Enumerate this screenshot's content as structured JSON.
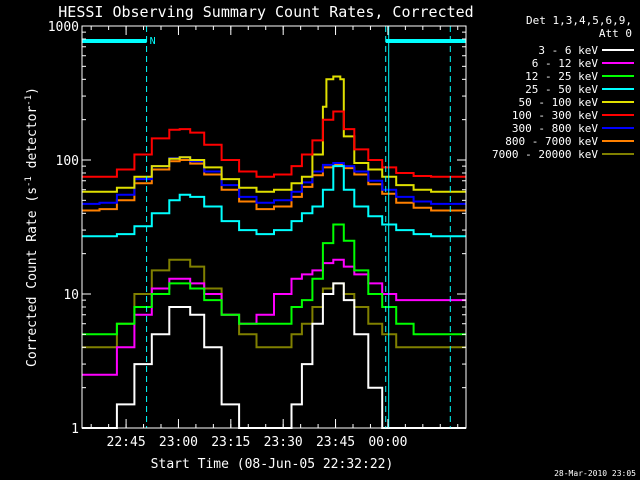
{
  "chart_data": {
    "type": "line",
    "title": "HESSI Observing Summary Count Rates, Corrected",
    "xlabel": "Start Time (08-Jun-05 22:32:22)",
    "ylabel_prefix": "Corrected Count Rate (s",
    "ylabel_sup1": "-1",
    "ylabel_mid": " detector",
    "ylabel_sup2": "-1",
    "ylabel_suffix": ")",
    "footer": "28-Mar-2010 23:05",
    "y_scale": "log",
    "ylim": [
      1,
      1000
    ],
    "xlim_minutes_after_start": [
      0,
      110
    ],
    "x_ticks": [
      {
        "label": "22:45",
        "min": 12.63
      },
      {
        "label": "23:00",
        "min": 27.63
      },
      {
        "label": "23:15",
        "min": 42.63
      },
      {
        "label": "23:30",
        "min": 57.63
      },
      {
        "label": "23:45",
        "min": 72.63
      },
      {
        "label": "00:00",
        "min": 87.63
      }
    ],
    "y_ticks": [
      {
        "label": "1",
        "value": 1
      },
      {
        "label": "10",
        "value": 10
      },
      {
        "label": "100",
        "value": 100
      },
      {
        "label": "1000",
        "value": 1000
      }
    ],
    "legend": {
      "position": "top-right",
      "header": [
        "Det 1,3,4,5,6,9,",
        "Att 0"
      ],
      "entries": [
        {
          "name": "3 - 6 keV",
          "color": "#ffffff"
        },
        {
          "name": "6 - 12 keV",
          "color": "#ff00ff"
        },
        {
          "name": "12 - 25 keV",
          "color": "#00ff00"
        },
        {
          "name": "25 - 50 keV",
          "color": "#00ffff"
        },
        {
          "name": "50 - 100 keV",
          "color": "#e0e000"
        },
        {
          "name": "100 - 300 keV",
          "color": "#ff0000"
        },
        {
          "name": "300 - 800 keV",
          "color": "#0000ff"
        },
        {
          "name": "800 - 7000 keV",
          "color": "#ff8000"
        },
        {
          "name": "7000 - 20000 keV",
          "color": "#808000"
        }
      ]
    },
    "saa_flag": {
      "label": "N",
      "color": "#00ffff",
      "intervals_min": [
        [
          0,
          18.5
        ],
        [
          87,
          110
        ]
      ]
    },
    "dashed_markers_min": [
      18.5,
      87,
      105.5
    ],
    "night_markers_min": [
      87
    ],
    "series": [
      {
        "name": "3 - 6 keV",
        "color": "#ffffff",
        "x": [
          0,
          5,
          10,
          15,
          20,
          25,
          28,
          31,
          35,
          40,
          45,
          50,
          55,
          60,
          63,
          66,
          69,
          72,
          75,
          78,
          82,
          86,
          90,
          95,
          100,
          105,
          110
        ],
        "y": [
          1,
          1,
          1.5,
          3,
          5,
          8,
          8,
          7,
          4,
          1.5,
          1,
          1,
          1,
          1.5,
          3,
          6,
          10,
          12,
          9,
          5,
          2,
          1,
          1,
          1,
          1,
          1,
          1
        ]
      },
      {
        "name": "6 - 12 keV",
        "color": "#ff00ff",
        "x": [
          0,
          5,
          10,
          15,
          20,
          25,
          28,
          31,
          35,
          40,
          45,
          50,
          55,
          60,
          63,
          66,
          69,
          72,
          75,
          78,
          82,
          86,
          90,
          95,
          100,
          105,
          110
        ],
        "y": [
          2.5,
          2.5,
          4,
          7,
          11,
          13,
          13,
          12,
          10,
          7,
          6,
          7,
          10,
          13,
          14,
          15,
          17,
          18,
          16,
          14,
          12,
          10,
          9,
          9,
          9,
          9,
          9
        ]
      },
      {
        "name": "12 - 25 keV",
        "color": "#00ff00",
        "x": [
          0,
          5,
          10,
          15,
          20,
          25,
          28,
          31,
          35,
          40,
          45,
          50,
          55,
          60,
          63,
          66,
          69,
          72,
          75,
          78,
          82,
          86,
          90,
          95,
          100,
          105,
          110
        ],
        "y": [
          5,
          5,
          6,
          8,
          10,
          12,
          12,
          11,
          9,
          7,
          6,
          6,
          6,
          8,
          9,
          13,
          24,
          33,
          25,
          15,
          10,
          8,
          6,
          5,
          5,
          5,
          5
        ]
      },
      {
        "name": "25 - 50 keV",
        "color": "#00ffff",
        "x": [
          0,
          5,
          10,
          15,
          20,
          25,
          28,
          31,
          35,
          40,
          45,
          50,
          55,
          60,
          63,
          66,
          69,
          72,
          75,
          78,
          82,
          86,
          90,
          95,
          100,
          105,
          110
        ],
        "y": [
          27,
          27,
          28,
          32,
          40,
          50,
          55,
          53,
          45,
          35,
          30,
          28,
          30,
          35,
          40,
          45,
          60,
          90,
          60,
          45,
          38,
          33,
          30,
          28,
          27,
          27,
          27
        ]
      },
      {
        "name": "50 - 100 keV",
        "color": "#e0e000",
        "x": [
          0,
          5,
          10,
          15,
          20,
          25,
          28,
          31,
          35,
          40,
          45,
          50,
          55,
          60,
          63,
          66,
          69,
          70,
          72,
          74,
          75,
          78,
          82,
          86,
          90,
          95,
          100,
          105,
          110
        ],
        "y": [
          58,
          58,
          62,
          75,
          90,
          102,
          105,
          100,
          88,
          72,
          62,
          58,
          60,
          67,
          75,
          110,
          250,
          400,
          420,
          400,
          150,
          95,
          85,
          75,
          65,
          60,
          58,
          58,
          58
        ]
      },
      {
        "name": "100 - 300 keV",
        "color": "#ff0000",
        "x": [
          0,
          5,
          10,
          15,
          20,
          25,
          28,
          31,
          35,
          40,
          45,
          50,
          55,
          60,
          63,
          66,
          69,
          72,
          75,
          78,
          82,
          86,
          90,
          95,
          100,
          105,
          110
        ],
        "y": [
          75,
          75,
          85,
          110,
          145,
          168,
          170,
          160,
          130,
          100,
          82,
          75,
          78,
          90,
          110,
          140,
          200,
          230,
          170,
          120,
          100,
          88,
          80,
          76,
          75,
          75,
          75
        ]
      },
      {
        "name": "300 - 800 keV",
        "color": "#0000ff",
        "x": [
          0,
          5,
          10,
          15,
          20,
          25,
          28,
          31,
          35,
          40,
          45,
          50,
          55,
          60,
          63,
          66,
          69,
          72,
          75,
          78,
          82,
          86,
          90,
          95,
          100,
          105,
          110
        ],
        "y": [
          47,
          48,
          55,
          72,
          90,
          103,
          105,
          98,
          82,
          65,
          53,
          48,
          50,
          58,
          68,
          82,
          92,
          95,
          90,
          82,
          70,
          60,
          53,
          49,
          47,
          47,
          47
        ]
      },
      {
        "name": "800 - 7000 keV",
        "color": "#ff8000",
        "x": [
          0,
          5,
          10,
          15,
          20,
          25,
          28,
          31,
          35,
          40,
          45,
          50,
          55,
          60,
          63,
          66,
          69,
          72,
          75,
          78,
          82,
          86,
          90,
          95,
          100,
          105,
          110
        ],
        "y": [
          42,
          43,
          50,
          67,
          85,
          98,
          100,
          94,
          78,
          60,
          49,
          43,
          45,
          53,
          63,
          77,
          88,
          92,
          87,
          78,
          66,
          56,
          48,
          44,
          42,
          42,
          42
        ]
      },
      {
        "name": "7000 - 20000 keV",
        "color": "#808000",
        "x": [
          0,
          5,
          10,
          15,
          20,
          25,
          28,
          31,
          35,
          40,
          45,
          50,
          55,
          60,
          63,
          66,
          69,
          72,
          75,
          78,
          82,
          86,
          90,
          95,
          100,
          105,
          110
        ],
        "y": [
          4,
          4,
          6,
          10,
          15,
          18,
          18,
          16,
          11,
          7,
          5,
          4,
          4,
          5,
          6,
          8,
          11,
          12,
          10,
          8,
          6,
          5,
          4,
          4,
          4,
          4,
          4
        ]
      }
    ]
  }
}
